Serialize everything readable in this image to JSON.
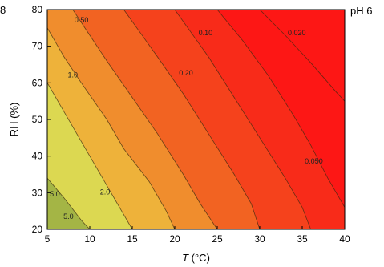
{
  "corner_left_text": "8",
  "corner_right_text": "pH 6",
  "chart_data": {
    "type": "contour",
    "xlabel_italic": "T",
    "xlabel_rest": " (°C)",
    "ylabel": "RH (%)",
    "xlim": [
      5,
      40
    ],
    "ylim": [
      20,
      80
    ],
    "x_ticks": [
      5,
      10,
      15,
      20,
      25,
      30,
      35,
      40
    ],
    "y_ticks": [
      20,
      30,
      40,
      50,
      60,
      70,
      80
    ],
    "grid": false,
    "levels": [
      {
        "label": "5.0",
        "points": [
          [
            5,
            34
          ],
          [
            7,
            28.5
          ],
          [
            9,
            22.5
          ],
          [
            10,
            20
          ]
        ],
        "label_at": [
          5.3,
          29
        ]
      },
      {
        "label": "2.0",
        "points": [
          [
            5,
            60
          ],
          [
            7,
            52
          ],
          [
            9,
            44
          ],
          [
            11,
            36
          ],
          [
            13,
            28
          ],
          [
            15,
            20
          ]
        ],
        "label_at": [
          11.2,
          29.5
        ]
      },
      {
        "label": "1.0",
        "points": [
          [
            5,
            75
          ],
          [
            7,
            67
          ],
          [
            9,
            60
          ],
          [
            12,
            50
          ],
          [
            14,
            42
          ],
          [
            17,
            33
          ],
          [
            19,
            25
          ],
          [
            20,
            20
          ]
        ],
        "label_at": [
          7.4,
          61.5
        ]
      },
      {
        "label": "0.50",
        "points": [
          [
            8,
            80
          ],
          [
            10,
            73
          ],
          [
            12,
            66
          ],
          [
            15,
            56
          ],
          [
            18,
            46
          ],
          [
            21,
            35
          ],
          [
            23,
            27
          ],
          [
            25,
            20
          ]
        ],
        "label_at": [
          8.2,
          76.5
        ]
      },
      {
        "label": "0.20",
        "points": [
          [
            14,
            80
          ],
          [
            16,
            73.5
          ],
          [
            18,
            67
          ],
          [
            21,
            57
          ],
          [
            24,
            46
          ],
          [
            27,
            35
          ],
          [
            29,
            27
          ],
          [
            30,
            20
          ]
        ],
        "label_at": [
          20.5,
          62
        ]
      },
      {
        "label": "0.10",
        "points": [
          [
            20,
            80
          ],
          [
            22,
            73.5
          ],
          [
            24,
            67
          ],
          [
            27,
            56
          ],
          [
            30,
            45
          ],
          [
            33,
            34
          ],
          [
            35,
            26
          ],
          [
            36,
            20
          ]
        ],
        "label_at": [
          22.8,
          73
        ]
      },
      {
        "label": "0.050",
        "points": [
          [
            25,
            80
          ],
          [
            28,
            71.5
          ],
          [
            31,
            62
          ],
          [
            34,
            51
          ],
          [
            36,
            43
          ],
          [
            38,
            34
          ],
          [
            40,
            26
          ]
        ],
        "label_at": [
          35.3,
          38
        ]
      },
      {
        "label": "0.020",
        "points": [
          [
            30,
            80
          ],
          [
            33,
            73
          ],
          [
            36,
            65.5
          ],
          [
            39,
            57.5
          ],
          [
            40,
            55
          ]
        ],
        "label_at": [
          33.3,
          73
        ]
      }
    ],
    "bottom_labels": [
      {
        "label": "5.0",
        "at": [
          6.9,
          22.8
        ]
      }
    ],
    "colors": [
      "#a4b545",
      "#bcc84c",
      "#dcd851",
      "#eeb23a",
      "#f08d2d",
      "#f26322",
      "#f5421c",
      "#f82b19",
      "#fd1715"
    ]
  }
}
